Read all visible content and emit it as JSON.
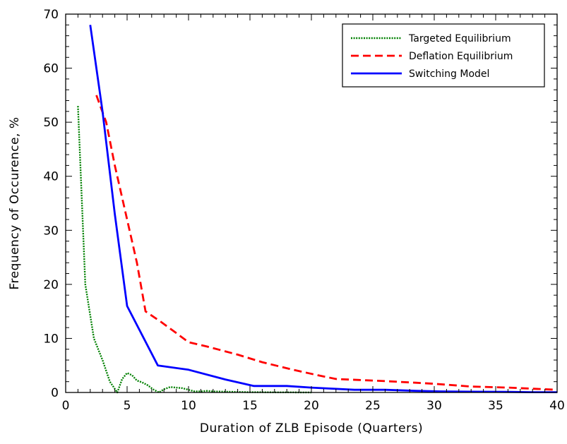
{
  "chart_data": {
    "type": "line",
    "title": "",
    "xlabel": "Duration of ZLB Episode (Quarters)",
    "ylabel": "Frequency of Occurence, %",
    "xlim": [
      0,
      40
    ],
    "ylim": [
      0,
      70
    ],
    "xticks": [
      0,
      5,
      10,
      15,
      20,
      25,
      30,
      35,
      40
    ],
    "yticks": [
      0,
      10,
      20,
      30,
      40,
      50,
      60,
      70
    ],
    "grid": false,
    "legend_position": "top-right",
    "series": [
      {
        "name": "Targeted Equilibrium",
        "color": "#008000",
        "style": "dotted",
        "x": [
          1,
          1.6,
          2.3,
          3,
          3.6,
          4.2,
          4.6,
          5,
          5.4,
          5.8,
          6.2,
          6.7,
          7.1,
          7.6,
          8,
          8.5,
          9,
          9.5,
          10,
          10.5,
          11,
          11.5,
          12,
          13,
          14,
          15,
          16,
          17,
          18,
          19,
          20
        ],
        "y": [
          53,
          20,
          10,
          6,
          2,
          0,
          2.5,
          3.6,
          3.2,
          2.2,
          1.9,
          1.3,
          0.6,
          0,
          0.6,
          1.0,
          0.9,
          0.8,
          0.5,
          0.2,
          0.2,
          0.3,
          0.2,
          0.15,
          0.1,
          0.05,
          0.05,
          0.03,
          0.02,
          0.01,
          0
        ]
      },
      {
        "name": "Deflation Equilibrium",
        "color": "#ff0000",
        "style": "dashed",
        "x": [
          2.5,
          3.3,
          4,
          5,
          5.8,
          6.5,
          7.8,
          9,
          10,
          11.5,
          14,
          16,
          18.5,
          20.5,
          22,
          24,
          26,
          28.5,
          30,
          33,
          36,
          40
        ],
        "y": [
          55,
          50,
          42,
          32,
          24,
          15,
          13,
          11,
          9.3,
          8.5,
          7,
          5.6,
          4.2,
          3.2,
          2.5,
          2.3,
          2.1,
          1.8,
          1.6,
          1.1,
          0.9,
          0.5
        ]
      },
      {
        "name": "Switching Model",
        "color": "#0000ff",
        "style": "solid",
        "x": [
          2,
          3,
          4,
          5,
          7.5,
          10,
          13,
          15.3,
          18,
          20,
          23.5,
          26,
          28.5,
          30.5,
          33,
          36,
          38,
          40
        ],
        "y": [
          68,
          52,
          33,
          16,
          5,
          4.2,
          2.4,
          1.2,
          1.2,
          0.9,
          0.5,
          0.5,
          0.3,
          0.2,
          0.15,
          0.1,
          0.05,
          0.05
        ]
      }
    ]
  }
}
